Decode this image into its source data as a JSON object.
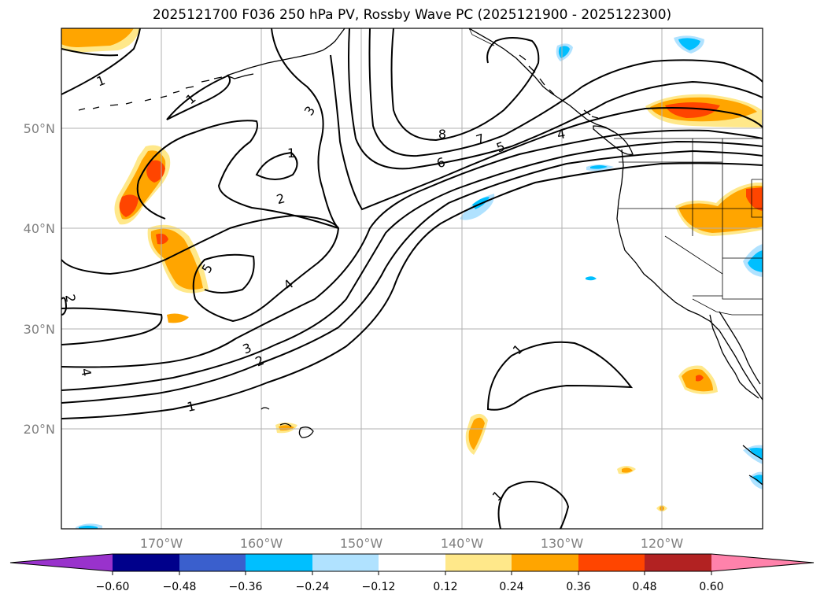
{
  "title": "2025121700 F036 250 hPa PV, Rossby Wave PC (2025121900 - 2025122300)",
  "latitude_labels": [
    "50°N",
    "40°N",
    "30°N",
    "20°N"
  ],
  "longitude_labels": [
    "170°W",
    "160°W",
    "150°W",
    "140°W",
    "130°W",
    "120°W"
  ],
  "contour_labels": [
    "1",
    "1",
    "3",
    "1",
    "2",
    "8",
    "7",
    "6",
    "5",
    "4",
    "5",
    "4",
    "3",
    "2",
    "1",
    "1",
    "1",
    "4",
    "2"
  ],
  "colorbar": {
    "tick_labels": [
      "−0.60",
      "−0.48",
      "−0.36",
      "−0.24",
      "−0.12",
      "0.12",
      "0.24",
      "0.36",
      "0.48",
      "0.60"
    ],
    "colors": [
      "#9932cc",
      "#00008b",
      "#3a5fcd",
      "#00bfff",
      "#b0e2ff",
      "#ffffff",
      "#ffe88a",
      "#ffa500",
      "#ff4500",
      "#b22222",
      "#ff82ab"
    ]
  }
}
